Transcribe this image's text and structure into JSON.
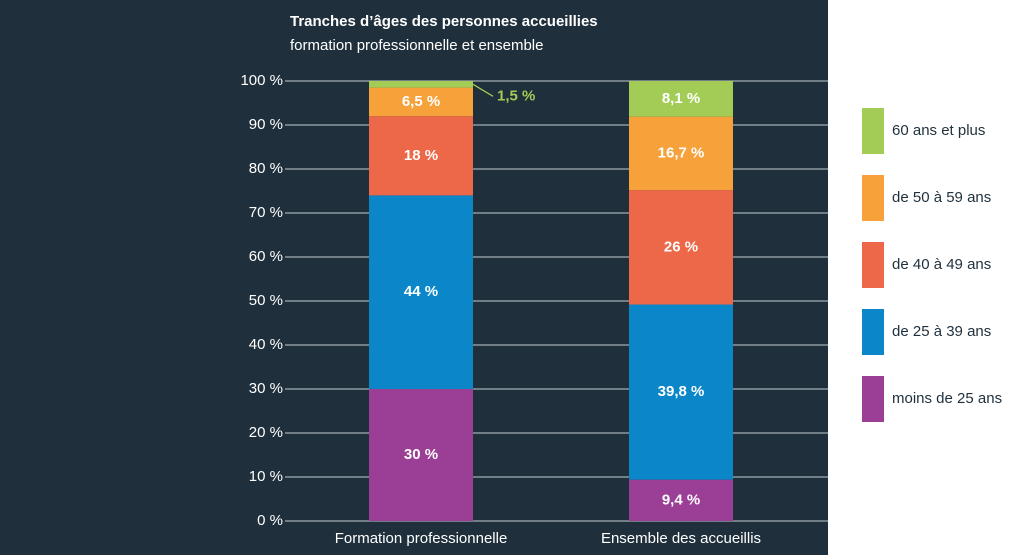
{
  "chart_data": {
    "type": "stacked_bar",
    "title": "Tranches d’âges des personnes accueillies",
    "subtitle": "formation professionnelle et ensemble",
    "categories": [
      "Formation professionnelle",
      "Ensemble des accueillis"
    ],
    "series": [
      {
        "name": "moins de 25 ans",
        "color": "#9b3e96",
        "values": [
          30,
          9.4
        ],
        "value_labels": [
          "30 %",
          "9,4 %"
        ]
      },
      {
        "name": "de 25 à 39 ans",
        "color": "#0b87c9",
        "values": [
          44,
          39.8
        ],
        "value_labels": [
          "44 %",
          "39,8 %"
        ]
      },
      {
        "name": "de 40 à 49 ans",
        "color": "#ec6848",
        "values": [
          18,
          26
        ],
        "value_labels": [
          "18 %",
          "26 %"
        ]
      },
      {
        "name": "de 50 à 59 ans",
        "color": "#f6a13a",
        "values": [
          6.5,
          16.7
        ],
        "value_labels": [
          "6,5 %",
          "16,7 %"
        ]
      },
      {
        "name": "60 ans et plus",
        "color": "#a3cc56",
        "values": [
          1.5,
          8.1
        ],
        "value_labels": [
          "1,5 %",
          "8,1 %"
        ]
      }
    ],
    "ylim": [
      0,
      100
    ],
    "yticks": [
      {
        "value": 0,
        "label": "0 %"
      },
      {
        "value": 10,
        "label": "10 %"
      },
      {
        "value": 20,
        "label": "20 %"
      },
      {
        "value": 30,
        "label": "30 %"
      },
      {
        "value": 40,
        "label": "40 %"
      },
      {
        "value": 50,
        "label": "50 %"
      },
      {
        "value": 60,
        "label": "60 %"
      },
      {
        "value": 70,
        "label": "70 %"
      },
      {
        "value": 80,
        "label": "80 %"
      },
      {
        "value": 90,
        "label": "90 %"
      },
      {
        "value": 100,
        "label": "100 %"
      }
    ],
    "grid": true,
    "legend": "right"
  }
}
